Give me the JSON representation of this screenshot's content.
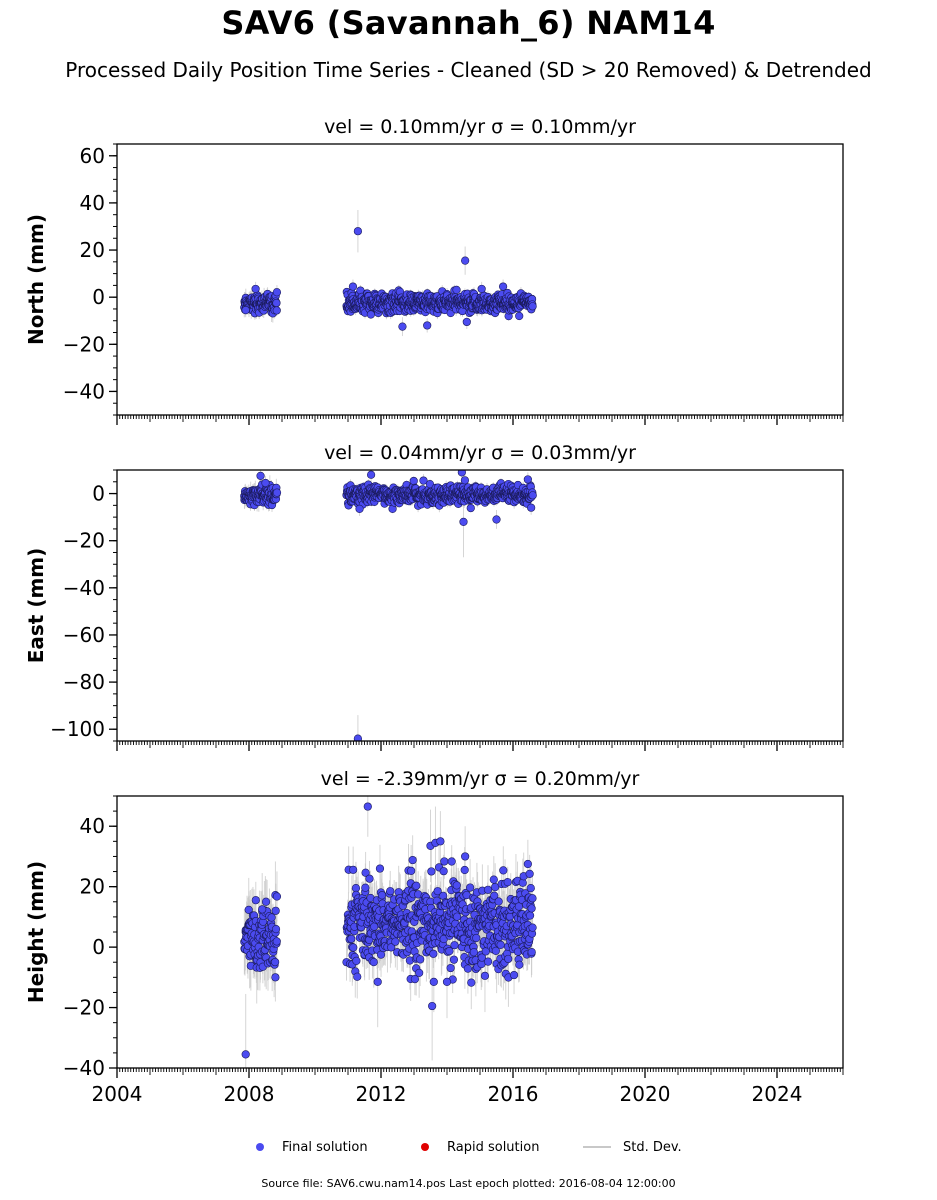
{
  "title": "SAV6 (Savannah_6) NAM14",
  "subtitle": "Processed Daily Position Time Series - Cleaned (SD > 20 Removed) & Detrended",
  "footer": "Source file: SAV6.cwu.nam14.pos  Last epoch plotted: 2016-08-04 12:00:00",
  "colors": {
    "final": "#4b4bf0",
    "final_edge": "#1a1a5a",
    "rapid": "#e00000",
    "std_dev": "#c8c8c8"
  },
  "legend": [
    {
      "label": "Final solution",
      "kind": "dot",
      "color": "#4b4bf0"
    },
    {
      "label": "Rapid solution",
      "kind": "dot",
      "color": "#e00000"
    },
    {
      "label": "Std. Dev.",
      "kind": "line",
      "color": "#c8c8c8"
    }
  ],
  "chart_data": [
    {
      "type": "scatter",
      "panel": "north",
      "title": "vel = 0.10mm/yr   σ = 0.10mm/yr",
      "ylabel": "North (mm)",
      "xlim": [
        2004.0,
        2026.0
      ],
      "ylim": [
        -50,
        65
      ],
      "yticks": [
        -40,
        -20,
        0,
        20,
        40,
        60
      ],
      "ytick_labels": [
        "−40",
        "−20",
        "0",
        "20",
        "40",
        "60"
      ],
      "show_x_labels": false,
      "segments": [
        {
          "start": 2007.85,
          "end": 2008.85,
          "center": -2.5,
          "spread": 1.8,
          "err": 3.0
        },
        {
          "start": 2010.95,
          "end": 2016.6,
          "center": -2.5,
          "spread": 2.0,
          "err": 2.0
        }
      ],
      "outliers": [
        {
          "x": 2011.3,
          "y": 28,
          "err": 9
        },
        {
          "x": 2014.55,
          "y": 15.5,
          "err": 6
        },
        {
          "x": 2011.15,
          "y": 4.5,
          "err": 3
        },
        {
          "x": 2012.65,
          "y": -12.5,
          "err": 4
        },
        {
          "x": 2013.4,
          "y": -12,
          "err": 3
        },
        {
          "x": 2014.6,
          "y": -10.5,
          "err": 3
        },
        {
          "x": 2008.2,
          "y": 3.5,
          "err": 3
        },
        {
          "x": 2015.7,
          "y": 4.5,
          "err": 3
        },
        {
          "x": 2015.05,
          "y": 3.5,
          "err": 3
        },
        {
          "x": 2007.9,
          "y": -5.5,
          "err": 3
        }
      ]
    },
    {
      "type": "scatter",
      "panel": "east",
      "title": "vel = 0.04mm/yr   σ = 0.03mm/yr",
      "ylabel": "East (mm)",
      "xlim": [
        2004.0,
        2026.0
      ],
      "ylim": [
        -105,
        10
      ],
      "yticks": [
        -100,
        -80,
        -60,
        -40,
        -20,
        0
      ],
      "ytick_labels": [
        "−100",
        "−80",
        "−60",
        "−40",
        "−20",
        "0"
      ],
      "show_x_labels": false,
      "segments": [
        {
          "start": 2007.85,
          "end": 2008.85,
          "center": -0.5,
          "spread": 1.8,
          "err": 3.0
        },
        {
          "start": 2010.95,
          "end": 2016.6,
          "center": -0.5,
          "spread": 1.8,
          "err": 2.0
        }
      ],
      "outliers": [
        {
          "x": 2011.3,
          "y": -104,
          "err": 10
        },
        {
          "x": 2014.5,
          "y": -12,
          "err": 15
        },
        {
          "x": 2014.45,
          "y": 9,
          "err": 4
        },
        {
          "x": 2015.5,
          "y": -11,
          "err": 4
        },
        {
          "x": 2008.35,
          "y": 7.5,
          "err": 3
        },
        {
          "x": 2008.5,
          "y": 4.5,
          "err": 3
        },
        {
          "x": 2011.7,
          "y": 8,
          "err": 3
        },
        {
          "x": 2016.45,
          "y": 6,
          "err": 3
        },
        {
          "x": 2011.35,
          "y": -6.5,
          "err": 3
        },
        {
          "x": 2016.55,
          "y": -6,
          "err": 3
        }
      ]
    },
    {
      "type": "scatter",
      "panel": "height",
      "title": "vel = -2.39mm/yr   σ = 0.20mm/yr",
      "ylabel": "Height (mm)",
      "xlim": [
        2004.0,
        2026.0
      ],
      "ylim": [
        -40,
        50
      ],
      "yticks": [
        -40,
        -20,
        0,
        20,
        40
      ],
      "ytick_labels": [
        "−40",
        "−20",
        "0",
        "20",
        "40"
      ],
      "xticks": [
        2004,
        2008,
        2012,
        2016,
        2020,
        2024
      ],
      "xtick_labels": [
        "2004",
        "2008",
        "2012",
        "2016",
        "2020",
        "2024"
      ],
      "show_x_labels": true,
      "segments": [
        {
          "start": 2007.85,
          "end": 2008.85,
          "center": 3,
          "spread": 5,
          "err": 9.0
        },
        {
          "start": 2010.95,
          "end": 2016.6,
          "center": 8,
          "spread": 7,
          "err": 7.0
        }
      ],
      "outliers": [
        {
          "x": 2007.9,
          "y": -35.5,
          "err": 20
        },
        {
          "x": 2011.6,
          "y": 46.5,
          "err": 10
        },
        {
          "x": 2013.5,
          "y": 33.5,
          "err": 12
        },
        {
          "x": 2013.65,
          "y": 34.5,
          "err": 12
        },
        {
          "x": 2013.8,
          "y": 35,
          "err": 10
        },
        {
          "x": 2013.55,
          "y": -19.5,
          "err": 18
        },
        {
          "x": 2013.6,
          "y": -11.5,
          "err": 10
        },
        {
          "x": 2011.9,
          "y": -11.5,
          "err": 15
        },
        {
          "x": 2014.0,
          "y": -11.5,
          "err": 12
        },
        {
          "x": 2015.15,
          "y": -9.5,
          "err": 12
        },
        {
          "x": 2016.45,
          "y": 27.5,
          "err": 8
        },
        {
          "x": 2014.55,
          "y": 30,
          "err": 10
        },
        {
          "x": 2008.8,
          "y": -10,
          "err": 8
        },
        {
          "x": 2008.4,
          "y": 12.5,
          "err": 12
        }
      ]
    }
  ]
}
